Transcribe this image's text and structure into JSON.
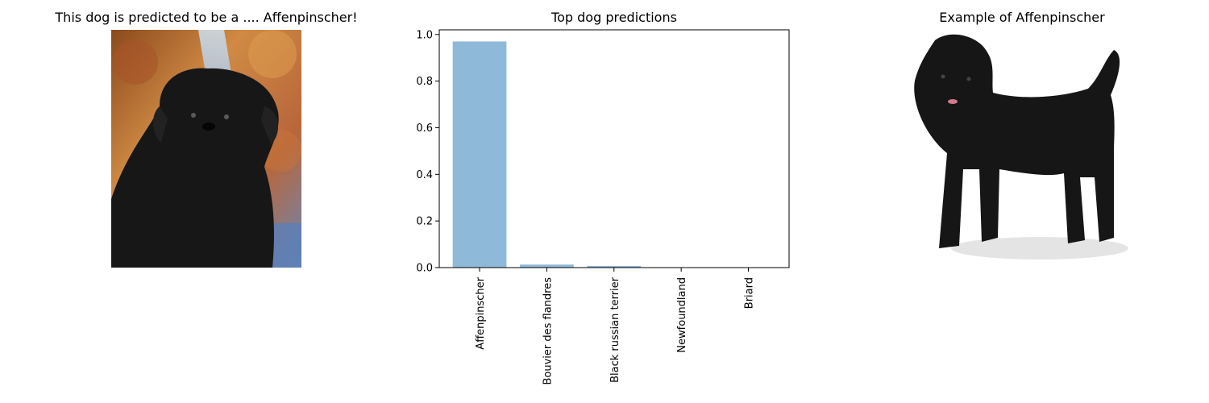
{
  "panels": {
    "query_title": "This dog is predicted to be a .... Affenpinscher!",
    "example_title": "Example of Affenpinscher"
  },
  "images": {
    "query_icon": "dog-photo-icon",
    "example_icon": "dog-photo-icon"
  },
  "colors": {
    "bar": "#8fb9d9",
    "query_background": "#c67a3a",
    "dog_fur": "#161616"
  },
  "chart_data": {
    "type": "bar",
    "title": "Top dog predictions",
    "xlabel": "",
    "ylabel": "",
    "categories": [
      "Affenpinscher",
      "Bouvier des flandres",
      "Black russian terrier",
      "Newfoundland",
      "Briard"
    ],
    "values": [
      0.97,
      0.013,
      0.007,
      0.001,
      0.001
    ],
    "ylim": [
      0,
      1.02
    ],
    "yticks": [
      0.0,
      0.2,
      0.4,
      0.6,
      0.8,
      1.0
    ],
    "ytick_labels": [
      "0.0",
      "0.2",
      "0.4",
      "0.6",
      "0.8",
      "1.0"
    ],
    "grid": false,
    "legend": "none"
  }
}
